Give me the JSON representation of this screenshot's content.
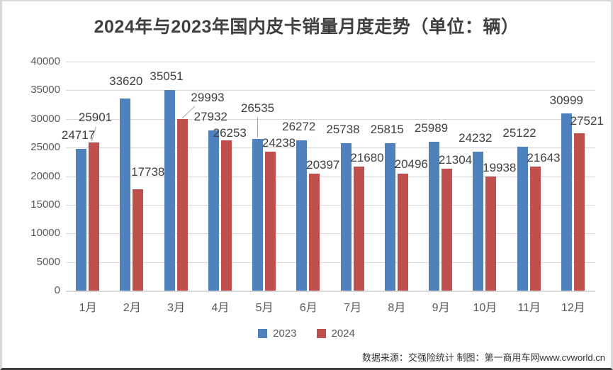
{
  "title": "2024年与2023年国内皮卡销量月度走势（单位：辆）",
  "chart_data": {
    "type": "bar",
    "title": "2024年与2023年国内皮卡销量月度走势（单位：辆）",
    "categories": [
      "1月",
      "2月",
      "3月",
      "4月",
      "5月",
      "6月",
      "7月",
      "8月",
      "9月",
      "10月",
      "11月",
      "12月"
    ],
    "series": [
      {
        "name": "2023",
        "color": "#4F81BD",
        "values": [
          24717,
          33620,
          35051,
          27932,
          26535,
          26272,
          25738,
          25815,
          25989,
          24232,
          25122,
          30999
        ]
      },
      {
        "name": "2024",
        "color": "#C0504D",
        "values": [
          25901,
          17738,
          29993,
          26253,
          24238,
          20397,
          21680,
          20496,
          21304,
          19938,
          21643,
          27521
        ]
      }
    ],
    "xlabel": "",
    "ylabel": "",
    "ylim": [
      0,
      40000
    ],
    "ytick_step": 5000,
    "yticks": [
      "0",
      "5000",
      "10000",
      "15000",
      "20000",
      "25000",
      "30000",
      "35000",
      "40000"
    ],
    "grid": true,
    "legend_position": "bottom",
    "data_labels": true
  },
  "colors": {
    "series_2023": "#4F81BD",
    "series_2024": "#C0504D",
    "gridline": "#d9d9d9",
    "axis_text": "#595959",
    "label_text": "#404040"
  },
  "footer": {
    "source": "数据来源：交强险统计 制图：第一商用车网www.cvworld.cn"
  }
}
